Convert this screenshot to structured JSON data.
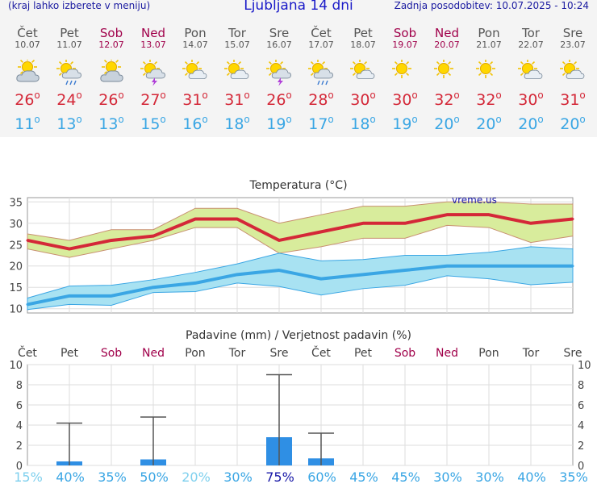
{
  "header": {
    "menu_hint": "(kraj lahko izberete v meniju)",
    "title": "Ljubljana 14 dni",
    "updated": "Zadnja posodobitev: 10.07.2025 - 10:24"
  },
  "days": [
    {
      "name": "Čet",
      "date": "10.07",
      "weekend": false,
      "icon": "cloudy-sun-icon",
      "tmax": "26",
      "tmin": "11"
    },
    {
      "name": "Pet",
      "date": "11.07",
      "weekend": false,
      "icon": "sun-cloud-rain-icon",
      "tmax": "24",
      "tmin": "13"
    },
    {
      "name": "Sob",
      "date": "12.07",
      "weekend": true,
      "icon": "cloudy-sun-icon",
      "tmax": "26",
      "tmin": "13"
    },
    {
      "name": "Ned",
      "date": "13.07",
      "weekend": true,
      "icon": "sun-storm-icon",
      "tmax": "27",
      "tmin": "15"
    },
    {
      "name": "Pon",
      "date": "14.07",
      "weekend": false,
      "icon": "sun-cloud-icon",
      "tmax": "31",
      "tmin": "16"
    },
    {
      "name": "Tor",
      "date": "15.07",
      "weekend": false,
      "icon": "sun-cloud-icon",
      "tmax": "31",
      "tmin": "18"
    },
    {
      "name": "Sre",
      "date": "16.07",
      "weekend": false,
      "icon": "sun-storm-icon",
      "tmax": "26",
      "tmin": "19"
    },
    {
      "name": "Čet",
      "date": "17.07",
      "weekend": false,
      "icon": "sun-cloud-rain-icon",
      "tmax": "28",
      "tmin": "17"
    },
    {
      "name": "Pet",
      "date": "18.07",
      "weekend": false,
      "icon": "sun-cloud-icon",
      "tmax": "30",
      "tmin": "18"
    },
    {
      "name": "Sob",
      "date": "19.07",
      "weekend": true,
      "icon": "sun-icon",
      "tmax": "30",
      "tmin": "19"
    },
    {
      "name": "Ned",
      "date": "20.07",
      "weekend": true,
      "icon": "sun-icon",
      "tmax": "32",
      "tmin": "20"
    },
    {
      "name": "Pon",
      "date": "21.07",
      "weekend": false,
      "icon": "sun-icon",
      "tmax": "32",
      "tmin": "20"
    },
    {
      "name": "Tor",
      "date": "22.07",
      "weekend": false,
      "icon": "sun-cloud-icon",
      "tmax": "30",
      "tmin": "20"
    },
    {
      "name": "Sre",
      "date": "23.07",
      "weekend": false,
      "icon": "sun-cloud-icon",
      "tmax": "31",
      "tmin": "20"
    }
  ],
  "degree_symbol": "o",
  "colors": {
    "max_line": "#d42838",
    "max_band": "#d8ec9c",
    "min_line": "#3aa6e4",
    "min_band": "#a8e2f2",
    "precip_bar": "#2f8fe4",
    "weekend": "#a0004a",
    "prob_low": "#7fd0ee",
    "prob_mid": "#3aa6e4",
    "prob_high": "#1a1aa8"
  },
  "chart_data": [
    {
      "type": "line",
      "title": "Temperatura (°C)",
      "watermark": "vreme.us",
      "categories": [
        "10.07",
        "11.07",
        "12.07",
        "13.07",
        "14.07",
        "15.07",
        "16.07",
        "17.07",
        "18.07",
        "19.07",
        "20.07",
        "21.07",
        "22.07",
        "23.07"
      ],
      "ylim": [
        9,
        36
      ],
      "yticks": [
        10,
        15,
        20,
        25,
        30,
        35
      ],
      "grid": true,
      "series": [
        {
          "role": "max",
          "values": [
            26,
            24,
            26,
            27,
            31,
            31,
            26,
            28,
            30,
            30,
            32,
            32,
            30,
            31
          ]
        },
        {
          "role": "max_upper",
          "values": [
            27.5,
            26,
            28.5,
            28.5,
            33.5,
            33.5,
            30,
            32,
            34,
            34,
            35,
            35,
            34.5,
            34.5
          ]
        },
        {
          "role": "max_lower",
          "values": [
            24,
            22,
            24,
            26,
            29,
            29,
            23,
            24.5,
            26.5,
            26.5,
            29.5,
            29,
            25.5,
            27
          ]
        },
        {
          "role": "min",
          "values": [
            11,
            13,
            13,
            15,
            16,
            18,
            19,
            17,
            18,
            19,
            20,
            20,
            20,
            20
          ]
        },
        {
          "role": "min_upper",
          "values": [
            12.5,
            15.3,
            15.5,
            16.8,
            18.5,
            20.5,
            23,
            21.2,
            21.5,
            22.5,
            22.5,
            23.2,
            24.5,
            24
          ]
        },
        {
          "role": "min_lower",
          "values": [
            9.8,
            11,
            10.8,
            13.8,
            14,
            16,
            15.2,
            13.2,
            14.7,
            15.5,
            17.7,
            17,
            15.6,
            16.2
          ]
        }
      ]
    },
    {
      "type": "bar",
      "title": "Padavine (mm) / Verjetnost padavin (%)",
      "day_labels": [
        "Čet",
        "Pet",
        "Sob",
        "Ned",
        "Pon",
        "Tor",
        "Sre",
        "Čet",
        "Pet",
        "Sob",
        "Ned",
        "Pon",
        "Tor",
        "Sre"
      ],
      "ylim": [
        0,
        10
      ],
      "yticks": [
        0,
        2,
        4,
        6,
        8,
        10
      ],
      "precip_mm": [
        0,
        0.4,
        0,
        0.6,
        0,
        0,
        2.8,
        0.7,
        0,
        0,
        0,
        0,
        0,
        0
      ],
      "precip_max_mm": [
        0,
        4.2,
        0,
        4.8,
        0,
        0,
        9.0,
        3.2,
        0,
        0,
        0,
        0,
        0,
        0
      ],
      "probability_labels": [
        "15%",
        "40%",
        "35%",
        "50%",
        "20%",
        "30%",
        "75%",
        "60%",
        "45%",
        "45%",
        "30%",
        "30%",
        "40%",
        "35%"
      ],
      "probability_levels": [
        "low",
        "mid",
        "mid",
        "mid",
        "low",
        "mid",
        "high",
        "mid",
        "mid",
        "mid",
        "mid",
        "mid",
        "mid",
        "mid"
      ]
    }
  ]
}
